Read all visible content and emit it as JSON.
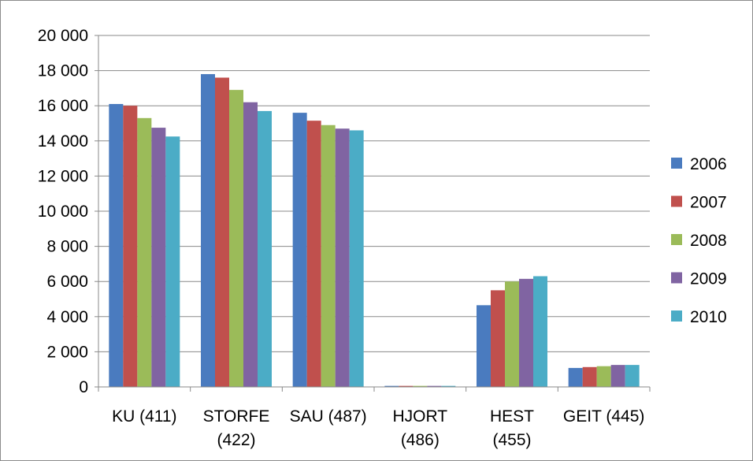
{
  "chart_data": {
    "type": "bar",
    "categories": [
      [
        "KU (411)"
      ],
      [
        "STORFE",
        "(422)"
      ],
      [
        "SAU (487)"
      ],
      [
        "HJORT",
        "(486)"
      ],
      [
        "HEST",
        "(455)"
      ],
      [
        "GEIT (445)"
      ]
    ],
    "series": [
      {
        "name": "2006",
        "color": "#4a7bbf",
        "values": [
          16100,
          17800,
          15600,
          60,
          4650,
          1080
        ]
      },
      {
        "name": "2007",
        "color": "#c0504d",
        "values": [
          16000,
          17600,
          15150,
          60,
          5500,
          1130
        ]
      },
      {
        "name": "2008",
        "color": "#9bbb59",
        "values": [
          15300,
          16900,
          14900,
          60,
          6000,
          1180
        ]
      },
      {
        "name": "2009",
        "color": "#8064a2",
        "values": [
          14750,
          16200,
          14700,
          60,
          6150,
          1250
        ]
      },
      {
        "name": "2010",
        "color": "#4bacc6",
        "values": [
          14250,
          15700,
          14600,
          60,
          6300,
          1250
        ]
      }
    ],
    "y_ticks": [
      {
        "value": 0,
        "label": "0"
      },
      {
        "value": 2000,
        "label": "2 000"
      },
      {
        "value": 4000,
        "label": "4 000"
      },
      {
        "value": 6000,
        "label": "6 000"
      },
      {
        "value": 8000,
        "label": "8 000"
      },
      {
        "value": 10000,
        "label": "10 000"
      },
      {
        "value": 12000,
        "label": "12 000"
      },
      {
        "value": 14000,
        "label": "14 000"
      },
      {
        "value": 16000,
        "label": "16 000"
      },
      {
        "value": 18000,
        "label": "18 000"
      },
      {
        "value": 20000,
        "label": "20 000"
      }
    ],
    "ylim": [
      0,
      20000
    ],
    "grid": true,
    "legend_position": "right",
    "title": "",
    "xlabel": "",
    "ylabel": ""
  }
}
